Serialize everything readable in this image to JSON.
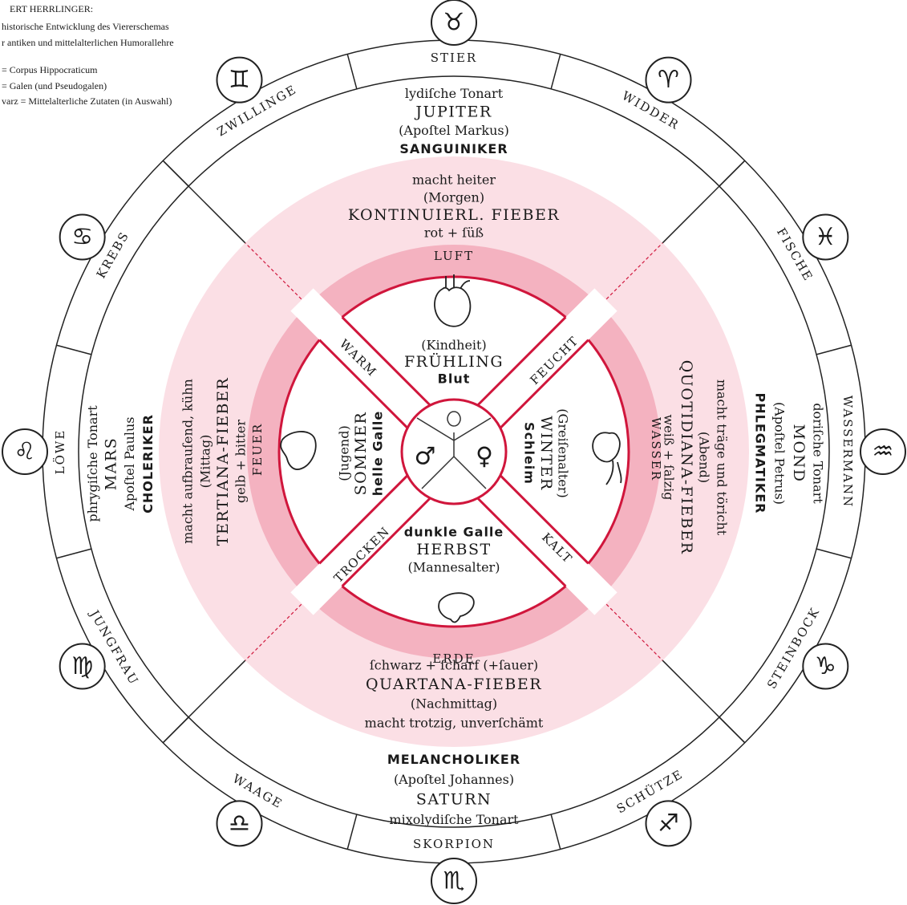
{
  "header": {
    "lines": [
      "ERT HERRLINGER:",
      "historische Entwicklung des Viererschemas",
      "r antiken und mittelalterlichen Humorallehre",
      "= Corpus Hippocraticum",
      "= Galen (und Pseudogalen)",
      "varz = Mittelalterliche Zutaten (in Auswahl)"
    ]
  },
  "zodiac": [
    {
      "name": "STIER",
      "symbol": "♉"
    },
    {
      "name": "WIDDER",
      "symbol": "♈"
    },
    {
      "name": "FISCHE",
      "symbol": "♓"
    },
    {
      "name": "WASSERMANN",
      "symbol": "♒"
    },
    {
      "name": "STEINBOCK",
      "symbol": "♑"
    },
    {
      "name": "SCHÜTZE",
      "symbol": "♐"
    },
    {
      "name": "SKORPION",
      "symbol": "♏"
    },
    {
      "name": "WAAGE",
      "symbol": "♎"
    },
    {
      "name": "JUNGFRAU",
      "symbol": "♍"
    },
    {
      "name": "LÖWE",
      "symbol": "♌"
    },
    {
      "name": "KREBS",
      "symbol": "♋"
    },
    {
      "name": "ZWILLINGE",
      "symbol": "♊"
    }
  ],
  "temperaments": {
    "top": [
      "lydiſche Tonart",
      "JUPITER",
      "(Apoſtel Markus)",
      "SANGUINIKER"
    ],
    "left": [
      "phrygiſche Tonart",
      "MARS",
      "Apoſtel Paulus",
      "CHOLERIKER"
    ],
    "right": [
      "doriſche Tonart",
      "MOND",
      "(Apoſtel Petrus)",
      "PHLEGMATIKER"
    ],
    "bottom": [
      "MELANCHOLIKER",
      "(Apoſtel Johannes)",
      "SATURN",
      "mixolydiſche Tonart"
    ]
  },
  "humors": {
    "top": [
      "macht heiter",
      "(Morgen)",
      "KONTINUIERL. FIEBER",
      "rot + ſüß"
    ],
    "left": [
      "macht aufbrauſend, kühn",
      "(Mittag)",
      "TERTIANA-FIEBER",
      "gelb + bitter"
    ],
    "right": [
      "macht träge und töricht",
      "(Abend)",
      "QUOTIDIANA-FIEBER",
      "weiß + ſalzig"
    ],
    "bottom": [
      "ſchwarz + ſcharf (+ſauer)",
      "QUARTANA-FIEBER",
      "(Nachmittag)",
      "macht trotzig, unverſchämt"
    ]
  },
  "elements": {
    "top": "LUFT",
    "left": "FEUER",
    "right": "WASSER",
    "bottom": "ERDE"
  },
  "qualities": {
    "top_left": "WARM",
    "top_right": "FEUCHT",
    "bottom_right": "KALT",
    "bottom_left": "TROCKEN"
  },
  "seasons": {
    "top": [
      "(Kindheit)",
      "FRÜHLING",
      "Blut"
    ],
    "left": [
      "(Jugend)",
      "SOMMER",
      "helle Galle"
    ],
    "right": [
      "(Greiſenalter)",
      "WINTER",
      "Schleim"
    ],
    "bottom": [
      "dunkle Galle",
      "HERBST",
      "(Mannesalter)"
    ]
  },
  "center": {
    "male": "♂",
    "female": "♀"
  }
}
